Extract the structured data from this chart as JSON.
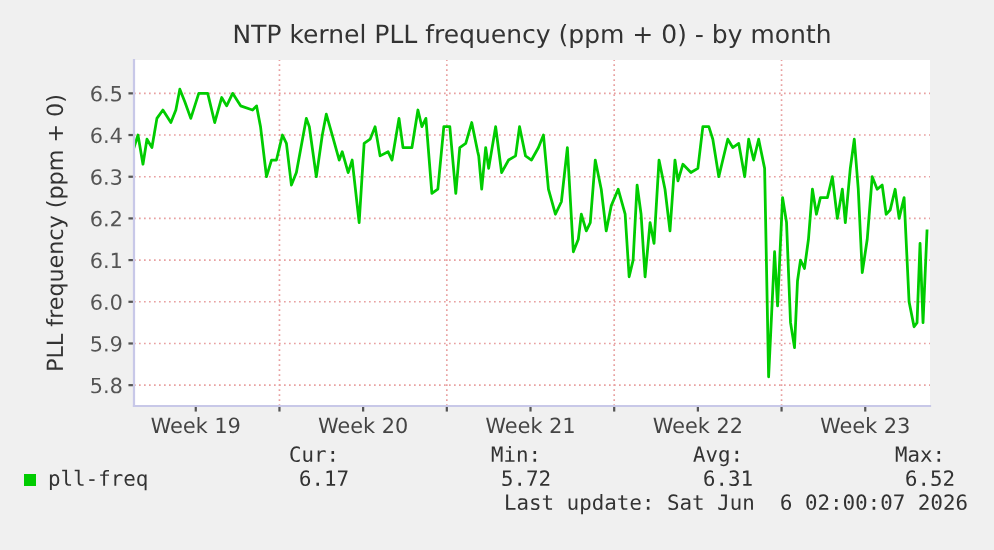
{
  "chart_data": {
    "type": "line",
    "title": "NTP kernel PLL frequency (ppm + 0) - by month",
    "ylabel": "PLL frequency (ppm + 0)",
    "xlim": [
      "2026-05-03T22:00",
      "2026-06-06T05:00"
    ],
    "ylim": [
      5.75,
      6.58
    ],
    "xticks": [
      {
        "value": "2026-05-06T12:00",
        "label": "Week 19"
      },
      {
        "value": "2026-05-10T00:00",
        "label": null
      },
      {
        "value": "2026-05-13T12:00",
        "label": "Week 20"
      },
      {
        "value": "2026-05-17T00:00",
        "label": null
      },
      {
        "value": "2026-05-20T12:00",
        "label": "Week 21"
      },
      {
        "value": "2026-05-24T00:00",
        "label": null
      },
      {
        "value": "2026-05-27T12:00",
        "label": "Week 22"
      },
      {
        "value": "2026-05-31T00:00",
        "label": null
      },
      {
        "value": "2026-06-03T12:00",
        "label": "Week 23"
      }
    ],
    "yticks": [
      5.8,
      5.9,
      {
        "value": 6.0,
        "label": "6.0"
      },
      6.1,
      6.2,
      6.3,
      6.4,
      6.5
    ],
    "grid": true,
    "legend": "bottom",
    "annotations": [
      "Cur:",
      "6.17",
      "Min:",
      "5.72",
      "Avg:",
      "6.31",
      "Max:",
      "6.52",
      "Last update: Sat Jun  6 02:00:07 2026"
    ],
    "x": [
      "2026-05-03T22:00",
      "2026-05-04T02:00",
      "2026-05-04T07:00",
      "2026-05-04T11:00",
      "2026-05-04T16:00",
      "2026-05-04T21:00",
      "2026-05-05T03:00",
      "2026-05-05T11:00",
      "2026-05-05T16:00",
      "2026-05-05T20:00",
      "2026-05-06T01:00",
      "2026-05-06T07:00",
      "2026-05-06T15:00",
      "2026-05-07T00:00",
      "2026-05-07T07:00",
      "2026-05-07T14:00",
      "2026-05-07T19:00",
      "2026-05-08T01:00",
      "2026-05-08T09:00",
      "2026-05-08T21:00",
      "2026-05-09T01:00",
      "2026-05-09T05:00",
      "2026-05-09T11:00",
      "2026-05-09T16:00",
      "2026-05-09T21:00",
      "2026-05-10T03:00",
      "2026-05-10T07:00",
      "2026-05-10T12:00",
      "2026-05-10T17:00",
      "2026-05-11T03:00",
      "2026-05-11T06:00",
      "2026-05-11T13:00",
      "2026-05-11T19:00",
      "2026-05-11T23:00",
      "2026-05-12T05:00",
      "2026-05-12T12:00",
      "2026-05-12T15:00",
      "2026-05-12T21:00",
      "2026-05-13T01:00",
      "2026-05-13T08:00",
      "2026-05-13T13:00",
      "2026-05-13T19:00",
      "2026-05-14T00:00",
      "2026-05-14T05:00",
      "2026-05-14T13:00",
      "2026-05-14T17:00",
      "2026-05-15T00:00",
      "2026-05-15T04:00",
      "2026-05-15T13:00",
      "2026-05-15T19:00",
      "2026-05-15T23:00",
      "2026-05-16T03:00",
      "2026-05-16T09:00",
      "2026-05-16T15:00",
      "2026-05-16T21:00",
      "2026-05-17T03:00",
      "2026-05-17T09:00",
      "2026-05-17T13:00",
      "2026-05-17T19:00",
      "2026-05-18T01:00",
      "2026-05-18T07:00",
      "2026-05-18T08:00",
      "2026-05-18T11:00",
      "2026-05-18T15:00",
      "2026-05-18T18:00",
      "2026-05-19T01:00",
      "2026-05-19T07:00",
      "2026-05-19T14:00",
      "2026-05-19T21:00",
      "2026-05-20T01:00",
      "2026-05-20T07:00",
      "2026-05-20T13:00",
      "2026-05-20T20:00",
      "2026-05-21T01:00",
      "2026-05-21T06:00",
      "2026-05-21T13:00",
      "2026-05-21T19:00",
      "2026-05-22T01:00",
      "2026-05-22T07:00",
      "2026-05-22T12:00",
      "2026-05-22T15:00",
      "2026-05-22T20:00",
      "2026-05-23T00:00",
      "2026-05-23T05:00",
      "2026-05-23T11:00",
      "2026-05-23T16:00",
      "2026-05-23T21:00",
      "2026-05-24T04:00",
      "2026-05-24T11:00",
      "2026-05-24T15:00",
      "2026-05-24T19:00",
      "2026-05-24T23:00",
      "2026-05-25T03:00",
      "2026-05-25T07:00",
      "2026-05-25T12:00",
      "2026-05-25T16:00",
      "2026-05-25T21:00",
      "2026-05-26T03:00",
      "2026-05-26T08:00",
      "2026-05-26T13:00",
      "2026-05-26T16:00",
      "2026-05-26T21:00",
      "2026-05-27T05:00",
      "2026-05-27T12:00",
      "2026-05-27T17:00",
      "2026-05-27T23:00",
      "2026-05-28T03:00",
      "2026-05-28T09:00",
      "2026-05-28T18:00",
      "2026-05-28T23:00",
      "2026-05-29T05:00",
      "2026-05-29T11:00",
      "2026-05-29T15:00",
      "2026-05-29T20:00",
      "2026-05-30T01:00",
      "2026-05-30T07:00",
      "2026-05-30T11:00",
      "2026-05-30T17:00",
      "2026-05-30T20:00",
      "2026-05-31T01:00",
      "2026-05-31T05:00",
      "2026-05-31T09:00",
      "2026-05-31T13:00",
      "2026-05-31T16:00",
      "2026-05-31T19:00",
      "2026-05-31T23:00",
      "2026-06-01T03:00",
      "2026-06-01T07:00",
      "2026-06-01T11:00",
      "2026-06-01T15:00",
      "2026-06-01T22:00",
      "2026-06-02T03:00",
      "2026-06-02T08:00",
      "2026-06-02T13:00",
      "2026-06-02T16:00",
      "2026-06-02T21:00",
      "2026-06-03T01:00",
      "2026-06-03T05:00",
      "2026-06-03T09:00",
      "2026-06-03T14:00",
      "2026-06-03T19:00",
      "2026-06-04T00:00",
      "2026-06-04T05:00",
      "2026-06-04T09:00",
      "2026-06-04T13:00",
      "2026-06-04T18:00",
      "2026-06-04T22:00",
      "2026-06-05T03:00",
      "2026-06-05T08:00",
      "2026-06-05T13:00",
      "2026-06-05T16:00",
      "2026-06-05T19:00",
      "2026-06-05T22:00",
      "2026-06-06T02:00"
    ],
    "series": [
      {
        "name": "pll-freq",
        "color": "#00cc00",
        "values": [
          6.37,
          6.4,
          6.33,
          6.39,
          6.37,
          6.44,
          6.46,
          6.43,
          6.46,
          6.51,
          6.48,
          6.44,
          6.5,
          6.5,
          6.43,
          6.49,
          6.47,
          6.5,
          6.47,
          6.46,
          6.47,
          6.42,
          6.3,
          6.34,
          6.34,
          6.4,
          6.38,
          6.28,
          6.31,
          6.44,
          6.42,
          6.3,
          6.4,
          6.45,
          6.4,
          6.34,
          6.36,
          6.31,
          6.34,
          6.19,
          6.38,
          6.39,
          6.42,
          6.35,
          6.36,
          6.34,
          6.44,
          6.37,
          6.37,
          6.46,
          6.42,
          6.44,
          6.26,
          6.27,
          6.42,
          6.42,
          6.26,
          6.37,
          6.38,
          6.43,
          6.36,
          6.35,
          6.27,
          6.37,
          6.32,
          6.42,
          6.31,
          6.34,
          6.35,
          6.42,
          6.35,
          6.34,
          6.37,
          6.4,
          6.27,
          6.21,
          6.24,
          6.37,
          6.12,
          6.15,
          6.21,
          6.17,
          6.19,
          6.34,
          6.27,
          6.17,
          6.23,
          6.27,
          6.21,
          6.06,
          6.1,
          6.28,
          6.21,
          6.06,
          6.19,
          6.14,
          6.34,
          6.27,
          6.17,
          6.34,
          6.29,
          6.33,
          6.31,
          6.32,
          6.42,
          6.42,
          6.39,
          6.3,
          6.39,
          6.37,
          6.38,
          6.3,
          6.39,
          6.34,
          6.39,
          6.32,
          5.82,
          6.12,
          5.99,
          6.25,
          6.19,
          5.95,
          5.89,
          6.05,
          6.1,
          6.08,
          6.15,
          6.27,
          6.21,
          6.25,
          6.25,
          6.3,
          6.2,
          6.27,
          6.19,
          6.32,
          6.39,
          6.27,
          6.07,
          6.15,
          6.3,
          6.27,
          6.28,
          6.21,
          6.22,
          6.27,
          6.2,
          6.25,
          6.0,
          5.94,
          5.95,
          6.14,
          5.95,
          6.17
        ]
      }
    ]
  }
}
